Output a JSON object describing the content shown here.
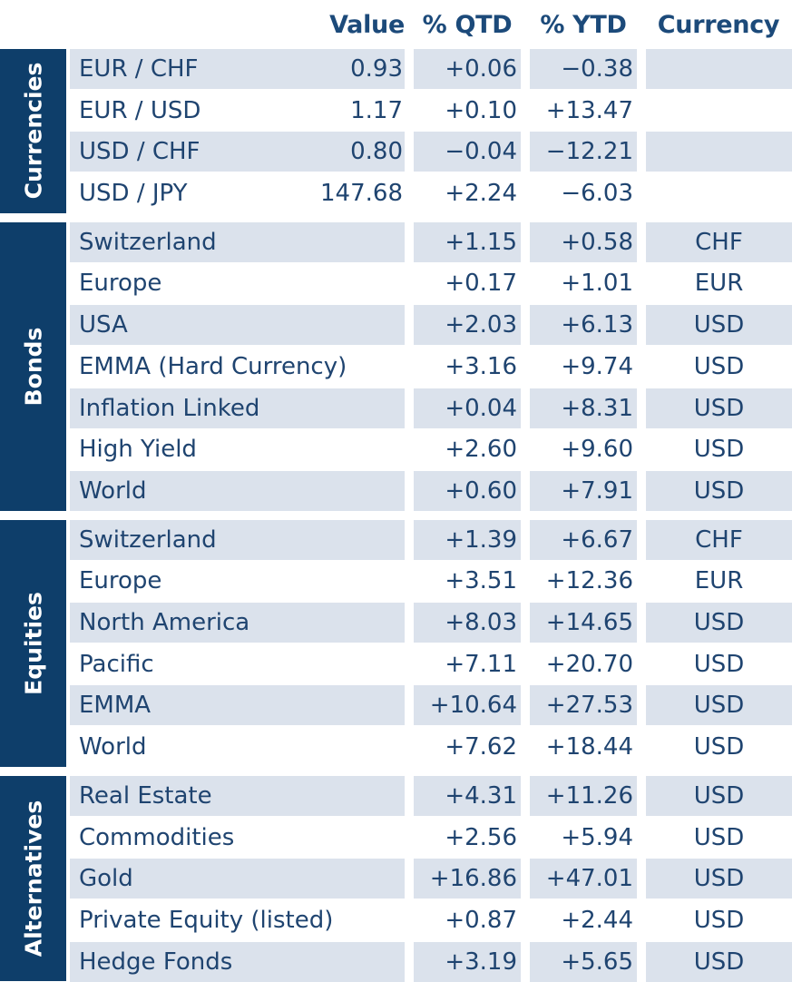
{
  "chart_data": {
    "type": "table",
    "columns": [
      "Value",
      "% QTD",
      "% YTD",
      "Currency"
    ],
    "groups": [
      {
        "name": "Currencies",
        "rows": [
          {
            "name": "EUR / CHF",
            "value": "0.93",
            "qtd": "+0.06",
            "ytd": "−0.38",
            "currency": ""
          },
          {
            "name": "EUR / USD",
            "value": "1.17",
            "qtd": "+0.10",
            "ytd": "+13.47",
            "currency": ""
          },
          {
            "name": "USD / CHF",
            "value": "0.80",
            "qtd": "−0.04",
            "ytd": "−12.21",
            "currency": ""
          },
          {
            "name": "USD / JPY",
            "value": "147.68",
            "qtd": "+2.24",
            "ytd": "−6.03",
            "currency": ""
          }
        ]
      },
      {
        "name": "Bonds",
        "rows": [
          {
            "name": "Switzerland",
            "value": "",
            "qtd": "+1.15",
            "ytd": "+0.58",
            "currency": "CHF"
          },
          {
            "name": "Europe",
            "value": "",
            "qtd": "+0.17",
            "ytd": "+1.01",
            "currency": "EUR"
          },
          {
            "name": "USA",
            "value": "",
            "qtd": "+2.03",
            "ytd": "+6.13",
            "currency": "USD"
          },
          {
            "name": "EMMA (Hard Currency)",
            "value": "",
            "qtd": "+3.16",
            "ytd": "+9.74",
            "currency": "USD"
          },
          {
            "name": "Inflation Linked",
            "value": "",
            "qtd": "+0.04",
            "ytd": "+8.31",
            "currency": "USD"
          },
          {
            "name": "High Yield",
            "value": "",
            "qtd": "+2.60",
            "ytd": "+9.60",
            "currency": "USD"
          },
          {
            "name": "World",
            "value": "",
            "qtd": "+0.60",
            "ytd": "+7.91",
            "currency": "USD"
          }
        ]
      },
      {
        "name": "Equities",
        "rows": [
          {
            "name": "Switzerland",
            "value": "",
            "qtd": "+1.39",
            "ytd": "+6.67",
            "currency": "CHF"
          },
          {
            "name": "Europe",
            "value": "",
            "qtd": "+3.51",
            "ytd": "+12.36",
            "currency": "EUR"
          },
          {
            "name": "North America",
            "value": "",
            "qtd": "+8.03",
            "ytd": "+14.65",
            "currency": "USD"
          },
          {
            "name": "Pacific",
            "value": "",
            "qtd": "+7.11",
            "ytd": "+20.70",
            "currency": "USD"
          },
          {
            "name": "EMMA",
            "value": "",
            "qtd": "+10.64",
            "ytd": "+27.53",
            "currency": "USD"
          },
          {
            "name": "World",
            "value": "",
            "qtd": "+7.62",
            "ytd": "+18.44",
            "currency": "USD"
          }
        ]
      },
      {
        "name": "Alternatives",
        "rows": [
          {
            "name": "Real Estate",
            "value": "",
            "qtd": "+4.31",
            "ytd": "+11.26",
            "currency": "USD"
          },
          {
            "name": "Commodities",
            "value": "",
            "qtd": "+2.56",
            "ytd": "+5.94",
            "currency": "USD"
          },
          {
            "name": "Gold",
            "value": "",
            "qtd": "+16.86",
            "ytd": "+47.01",
            "currency": "USD"
          },
          {
            "name": "Private Equity (listed)",
            "value": "",
            "qtd": "+0.87",
            "ytd": "+2.44",
            "currency": "USD"
          },
          {
            "name": "Hedge Fonds",
            "value": "",
            "qtd": "+3.19",
            "ytd": "+5.65",
            "currency": "USD"
          }
        ]
      }
    ]
  }
}
